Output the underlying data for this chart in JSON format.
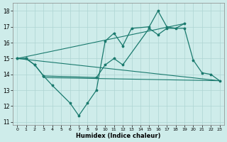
{
  "xlabel": "Humidex (Indice chaleur)",
  "xlim": [
    -0.5,
    23.5
  ],
  "ylim": [
    10.8,
    18.5
  ],
  "yticks": [
    11,
    12,
    13,
    14,
    15,
    16,
    17,
    18
  ],
  "xticks": [
    0,
    1,
    2,
    3,
    4,
    5,
    6,
    7,
    8,
    9,
    10,
    11,
    12,
    13,
    14,
    15,
    16,
    17,
    18,
    19,
    20,
    21,
    22,
    23
  ],
  "bg_color": "#ceecea",
  "grid_color": "#aed4d2",
  "line_color": "#1a7a6e",
  "jagged_x": [
    0,
    1,
    2,
    3,
    4,
    6,
    7,
    8,
    9,
    10,
    11,
    12,
    13,
    15,
    16,
    17,
    18,
    19
  ],
  "jagged_y": [
    15.0,
    15.0,
    14.6,
    13.9,
    13.3,
    12.2,
    11.4,
    12.2,
    13.0,
    16.1,
    16.6,
    15.8,
    16.9,
    17.0,
    18.0,
    17.0,
    16.9,
    17.2
  ],
  "smooth1_x": [
    0,
    1,
    2,
    3,
    9,
    10,
    11,
    12,
    15,
    16,
    17,
    19,
    20,
    21,
    22,
    23
  ],
  "smooth1_y": [
    15.0,
    15.0,
    14.6,
    13.9,
    13.8,
    14.6,
    15.0,
    14.6,
    16.9,
    16.5,
    16.9,
    16.9,
    14.9,
    14.1,
    14.0,
    13.6
  ],
  "trend1_x": [
    0,
    23
  ],
  "trend1_y": [
    15.0,
    13.6
  ],
  "trend2_x": [
    3,
    23
  ],
  "trend2_y": [
    13.8,
    13.6
  ],
  "trend3_x": [
    0,
    19
  ],
  "trend3_y": [
    15.0,
    17.2
  ]
}
